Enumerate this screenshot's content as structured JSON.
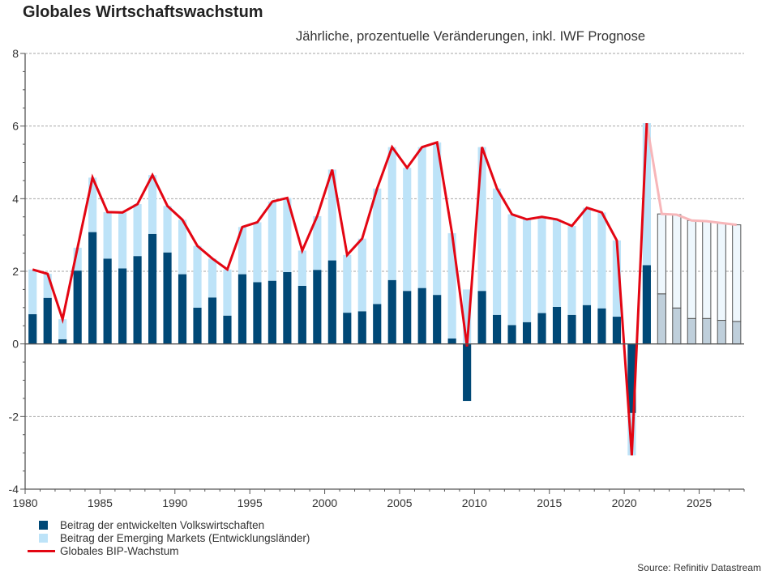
{
  "chart_data": {
    "type": "bar",
    "stacked": true,
    "title": "Globales Wirtschaftswachstum",
    "subtitle": "Jährliche, prozentuelle Veränderungen, inkl. IWF Prognose",
    "xlabel": "",
    "ylabel": "",
    "ylim": [
      -4,
      8
    ],
    "yticks": [
      -4,
      -2,
      0,
      2,
      4,
      6,
      8
    ],
    "xlim": [
      1980,
      2028
    ],
    "xticks": [
      1980,
      1985,
      1990,
      1995,
      2000,
      2005,
      2010,
      2015,
      2020,
      2025
    ],
    "grid": true,
    "legend_position": "bottom-left",
    "forecast_from": 2022,
    "x": [
      1980,
      1981,
      1982,
      1983,
      1984,
      1985,
      1986,
      1987,
      1988,
      1989,
      1990,
      1991,
      1992,
      1993,
      1994,
      1995,
      1996,
      1997,
      1998,
      1999,
      2000,
      2001,
      2002,
      2003,
      2004,
      2005,
      2006,
      2007,
      2008,
      2009,
      2010,
      2011,
      2012,
      2013,
      2014,
      2015,
      2016,
      2017,
      2018,
      2019,
      2020,
      2021,
      2022,
      2023,
      2024,
      2025,
      2026,
      2027
    ],
    "series": [
      {
        "name": "Beitrag der entwickelten Volkswirtschaften",
        "type": "bar",
        "color": "#004876",
        "forecast_color": "#bfcfdb",
        "values": [
          0.82,
          1.27,
          0.13,
          2.02,
          3.08,
          2.35,
          2.08,
          2.42,
          3.03,
          2.52,
          1.92,
          1.0,
          1.28,
          0.78,
          1.92,
          1.7,
          1.74,
          1.98,
          1.6,
          2.04,
          2.3,
          0.86,
          0.9,
          1.1,
          1.76,
          1.46,
          1.54,
          1.35,
          0.15,
          -1.57,
          1.46,
          0.8,
          0.52,
          0.6,
          0.85,
          1.02,
          0.8,
          1.07,
          0.98,
          0.75,
          -1.9,
          2.17,
          1.38,
          0.99,
          0.7,
          0.7,
          0.65,
          0.62
        ]
      },
      {
        "name": "Beitrag der Emerging Markets (Entwicklungsländer)",
        "type": "bar",
        "color": "#bde3f8",
        "forecast_color": "#eef7fd",
        "values": [
          1.23,
          0.66,
          0.55,
          0.63,
          1.5,
          1.28,
          1.54,
          1.43,
          1.62,
          1.28,
          1.5,
          1.7,
          1.07,
          1.27,
          1.3,
          1.65,
          2.18,
          2.04,
          0.97,
          1.48,
          2.5,
          1.59,
          2.0,
          3.18,
          3.66,
          3.39,
          3.88,
          4.2,
          2.9,
          1.5,
          3.96,
          3.48,
          3.05,
          2.83,
          2.65,
          2.41,
          2.45,
          2.68,
          2.64,
          2.1,
          -1.17,
          3.91,
          2.2,
          2.57,
          2.7,
          2.68,
          2.68,
          2.66
        ]
      },
      {
        "name": "Globales BIP-Wachstum",
        "type": "line",
        "color": "#e30613",
        "forecast_color": "#f7b6b9",
        "values": [
          2.05,
          1.93,
          0.68,
          2.65,
          4.58,
          3.63,
          3.62,
          3.85,
          4.65,
          3.8,
          3.42,
          2.7,
          2.35,
          2.05,
          3.22,
          3.35,
          3.92,
          4.02,
          2.57,
          3.52,
          4.8,
          2.45,
          2.9,
          4.28,
          5.42,
          4.85,
          5.42,
          5.55,
          3.05,
          -0.07,
          5.42,
          4.28,
          3.57,
          3.43,
          3.5,
          3.43,
          3.25,
          3.75,
          3.62,
          2.85,
          -3.07,
          6.08,
          3.58,
          3.56,
          3.4,
          3.38,
          3.33,
          3.28
        ]
      }
    ]
  },
  "legend": {
    "items": [
      {
        "label": "Beitrag der entwickelten Volkswirtschaften",
        "color": "#004876"
      },
      {
        "label": "Beitrag der Emerging Markets (Entwicklungsländer)",
        "color": "#bde3f8"
      },
      {
        "label": "Globales BIP-Wachstum",
        "color": "#e30613"
      }
    ]
  },
  "source": "Source: Refinitiv Datastream"
}
